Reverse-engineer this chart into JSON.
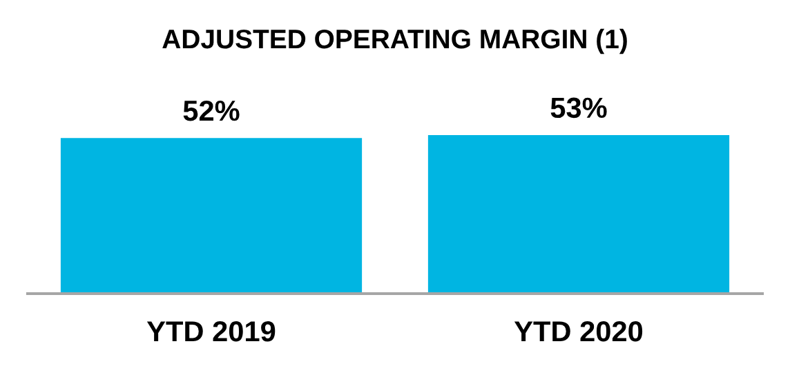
{
  "chart_data": {
    "type": "bar",
    "title": "ADJUSTED OPERATING MARGIN (1)",
    "categories": [
      "YTD 2019",
      "YTD 2020"
    ],
    "values": [
      52,
      53
    ],
    "value_labels": [
      "52%",
      "53%"
    ],
    "color": "#00b5e2",
    "grid": false,
    "legend": false
  }
}
